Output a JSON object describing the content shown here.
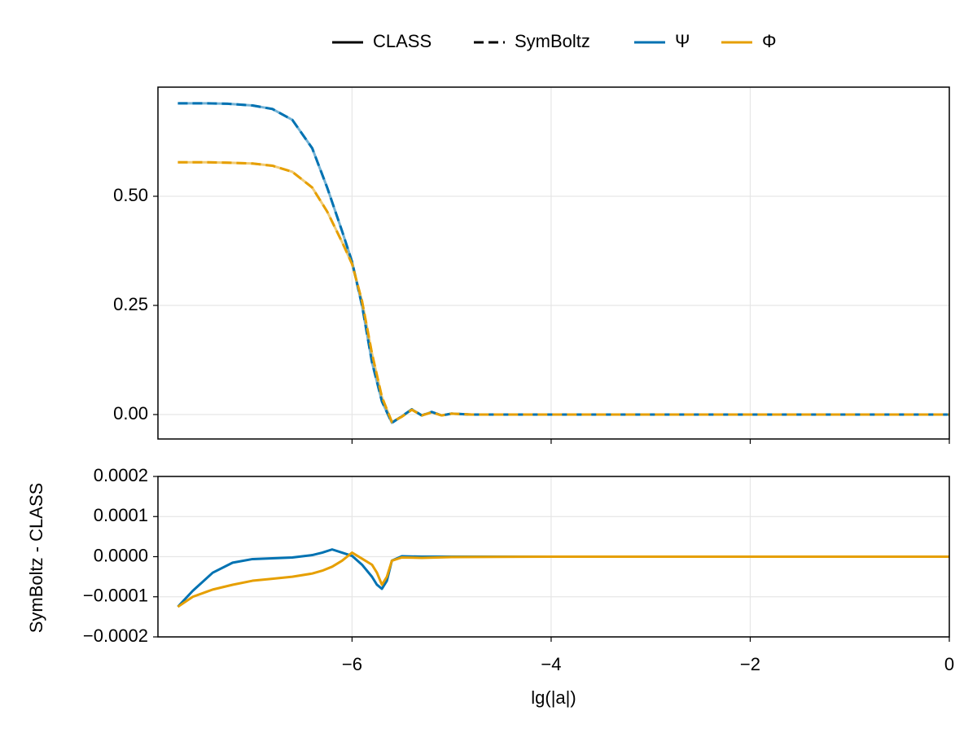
{
  "chart_data": [
    {
      "type": "line",
      "legend": {
        "entries": [
          {
            "name": "CLASS",
            "color": "#000000",
            "dash": false
          },
          {
            "name": "SymBoltz",
            "color": "#000000",
            "dash": true
          },
          {
            "name": "Ψ",
            "color": "#0072b2",
            "dash": false
          },
          {
            "name": "Φ",
            "color": "#e69f00",
            "dash": false
          }
        ]
      },
      "x": [
        -7.75,
        -7.5,
        -7.25,
        -7.0,
        -6.8,
        -6.6,
        -6.4,
        -6.25,
        -6.1,
        -6.0,
        -5.9,
        -5.8,
        -5.7,
        -5.6,
        -5.5,
        -5.4,
        -5.3,
        -5.2,
        -5.1,
        -5.0,
        -4.8,
        -4.5,
        -4,
        -3,
        -2,
        -1,
        0
      ],
      "series": [
        {
          "quantity": "Ψ",
          "source": "CLASS",
          "color": "#0072b2",
          "dash": false,
          "values": [
            0.713,
            0.713,
            0.712,
            0.708,
            0.7,
            0.675,
            0.61,
            0.52,
            0.42,
            0.35,
            0.25,
            0.12,
            0.03,
            -0.019,
            -0.004,
            0.012,
            -0.002,
            0.006,
            -0.002,
            0.002,
            0,
            0,
            0,
            0,
            0,
            0,
            0
          ]
        },
        {
          "quantity": "Φ",
          "source": "CLASS",
          "color": "#e69f00",
          "dash": false,
          "values": [
            0.578,
            0.578,
            0.577,
            0.575,
            0.57,
            0.556,
            0.52,
            0.465,
            0.395,
            0.345,
            0.26,
            0.14,
            0.04,
            -0.017,
            -0.005,
            0.011,
            -0.002,
            0.005,
            -0.002,
            0.002,
            0,
            0,
            0,
            0,
            0,
            0,
            0
          ]
        },
        {
          "quantity": "Ψ",
          "source": "SymBoltz",
          "color": "#0072b2",
          "dash": true,
          "values": [
            0.713,
            0.713,
            0.712,
            0.708,
            0.7,
            0.675,
            0.61,
            0.52,
            0.42,
            0.35,
            0.25,
            0.12,
            0.03,
            -0.019,
            -0.004,
            0.012,
            -0.002,
            0.006,
            -0.002,
            0.002,
            0,
            0,
            0,
            0,
            0,
            0,
            0
          ]
        },
        {
          "quantity": "Φ",
          "source": "SymBoltz",
          "color": "#e69f00",
          "dash": true,
          "values": [
            0.578,
            0.578,
            0.577,
            0.575,
            0.57,
            0.556,
            0.52,
            0.465,
            0.395,
            0.345,
            0.26,
            0.14,
            0.04,
            -0.017,
            -0.005,
            0.011,
            -0.002,
            0.005,
            -0.002,
            0.002,
            0,
            0,
            0,
            0,
            0,
            0,
            0
          ]
        }
      ],
      "xlim": [
        -7.95,
        0
      ],
      "xticks": [
        -6,
        -4,
        -2,
        0
      ],
      "ylim": [
        -0.056,
        0.75
      ],
      "yticks": [
        {
          "value": 0,
          "label": "0.00"
        },
        0.25,
        {
          "value": 0.5,
          "label": "0.50"
        }
      ],
      "grid": true
    },
    {
      "type": "line",
      "xlabel": "lg(|a|)",
      "ylabel": "SymBoltz - CLASS",
      "x": [
        -7.75,
        -7.6,
        -7.4,
        -7.2,
        -7.0,
        -6.8,
        -6.6,
        -6.4,
        -6.3,
        -6.2,
        -6.1,
        -6.0,
        -5.9,
        -5.8,
        -5.75,
        -5.7,
        -5.65,
        -5.6,
        -5.5,
        -5.3,
        -5,
        -4,
        -2,
        0
      ],
      "series": [
        {
          "quantity": "Ψ",
          "color": "#0072b2",
          "values": [
            -0.000125,
            -8.5e-05,
            -4e-05,
            -1.5e-05,
            -6e-06,
            -4e-06,
            -2e-06,
            4e-06,
            1e-05,
            1.8e-05,
            1e-05,
            2e-06,
            -2e-05,
            -5e-05,
            -7e-05,
            -8e-05,
            -6e-05,
            -1e-05,
            1e-06,
            0,
            0,
            0,
            0,
            0
          ]
        },
        {
          "quantity": "Φ",
          "color": "#e69f00",
          "values": [
            -0.000125,
            -0.0001,
            -8.2e-05,
            -7e-05,
            -6e-05,
            -5.5e-05,
            -5e-05,
            -4.2e-05,
            -3.5e-05,
            -2.5e-05,
            -1e-05,
            1e-05,
            -5e-06,
            -2e-05,
            -4e-05,
            -7e-05,
            -5e-05,
            -1e-05,
            -2e-06,
            -3e-06,
            -1e-06,
            0,
            0,
            0
          ]
        }
      ],
      "xlim": [
        -7.95,
        0
      ],
      "xticks": [
        {
          "value": -6,
          "label": "−6"
        },
        {
          "value": -4,
          "label": "−4"
        },
        {
          "value": -2,
          "label": "−2"
        },
        0
      ],
      "ylim": [
        -0.0002,
        0.0002
      ],
      "yticks": [
        {
          "value": -0.0002,
          "label": "−0.0002"
        },
        {
          "value": -0.0001,
          "label": "−0.0001"
        },
        {
          "value": 0,
          "label": "0.0000"
        },
        0.0001,
        0.0002
      ],
      "grid": true
    }
  ]
}
